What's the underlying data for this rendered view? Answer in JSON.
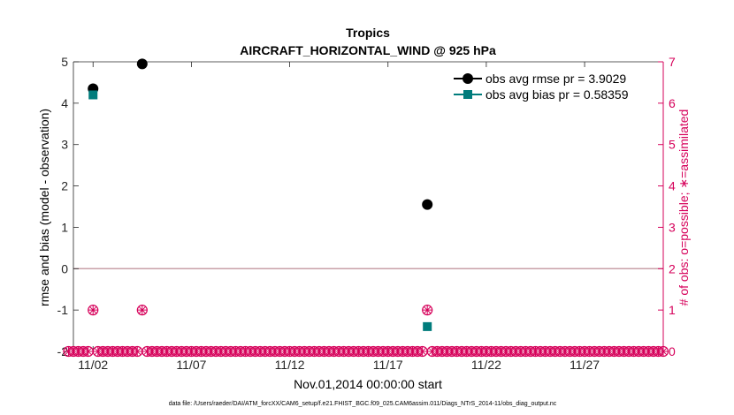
{
  "chart_data": {
    "type": "scatter",
    "title": "Tropics",
    "subtitle": "AIRCRAFT_HORIZONTAL_WIND @ 925 hPa",
    "xlabel": "Nov.01,2014 00:00:00 start",
    "ylabel": "rmse and bias (model - observation)",
    "y2label": "# of obs: o=possible; ∗=assimilated",
    "xlim": [
      1,
      31
    ],
    "ylim": [
      -2,
      5
    ],
    "y2lim": [
      0,
      7
    ],
    "x_ticks": [
      2,
      7,
      12,
      17,
      22,
      27
    ],
    "x_tick_labels": [
      "11/02",
      "11/07",
      "11/12",
      "11/17",
      "11/22",
      "11/27"
    ],
    "y_ticks": [
      -2,
      -1,
      0,
      1,
      2,
      3,
      4,
      5
    ],
    "y_tick_labels": [
      "-2",
      "-1",
      "0",
      "1",
      "2",
      "3",
      "4",
      "5"
    ],
    "y2_ticks": [
      0,
      1,
      2,
      3,
      4,
      5,
      6,
      7
    ],
    "y2_tick_labels": [
      "0",
      "1",
      "2",
      "3",
      "4",
      "5",
      "6",
      "7"
    ],
    "zero_line_y": 0,
    "series": [
      {
        "name": "obs avg rmse pr = 3.9029",
        "color": "#000000",
        "marker": "circle",
        "x": [
          2,
          4.5,
          19
        ],
        "y": [
          4.35,
          4.95,
          1.55
        ]
      },
      {
        "name": "obs avg bias pr = 0.58359",
        "color": "#007c7c",
        "marker": "square",
        "x": [
          2,
          19
        ],
        "y": [
          4.2,
          -1.4
        ]
      }
    ],
    "obs_counts": {
      "color": "#d6005a",
      "x_start": 0.75,
      "x_end": 31,
      "x_step": 0.25,
      "nonzero_x": [
        2,
        4.5,
        19
      ],
      "nonzero_values": [
        1,
        1,
        1
      ]
    },
    "footnote": "data file: /Users/raeder/DAI/ATM_forcXX/CAM6_setup/f.e21.FHIST_BGC.f09_025.CAM6assim.011/Diags_NTrS_2014-11/obs_diag_output.nc"
  }
}
